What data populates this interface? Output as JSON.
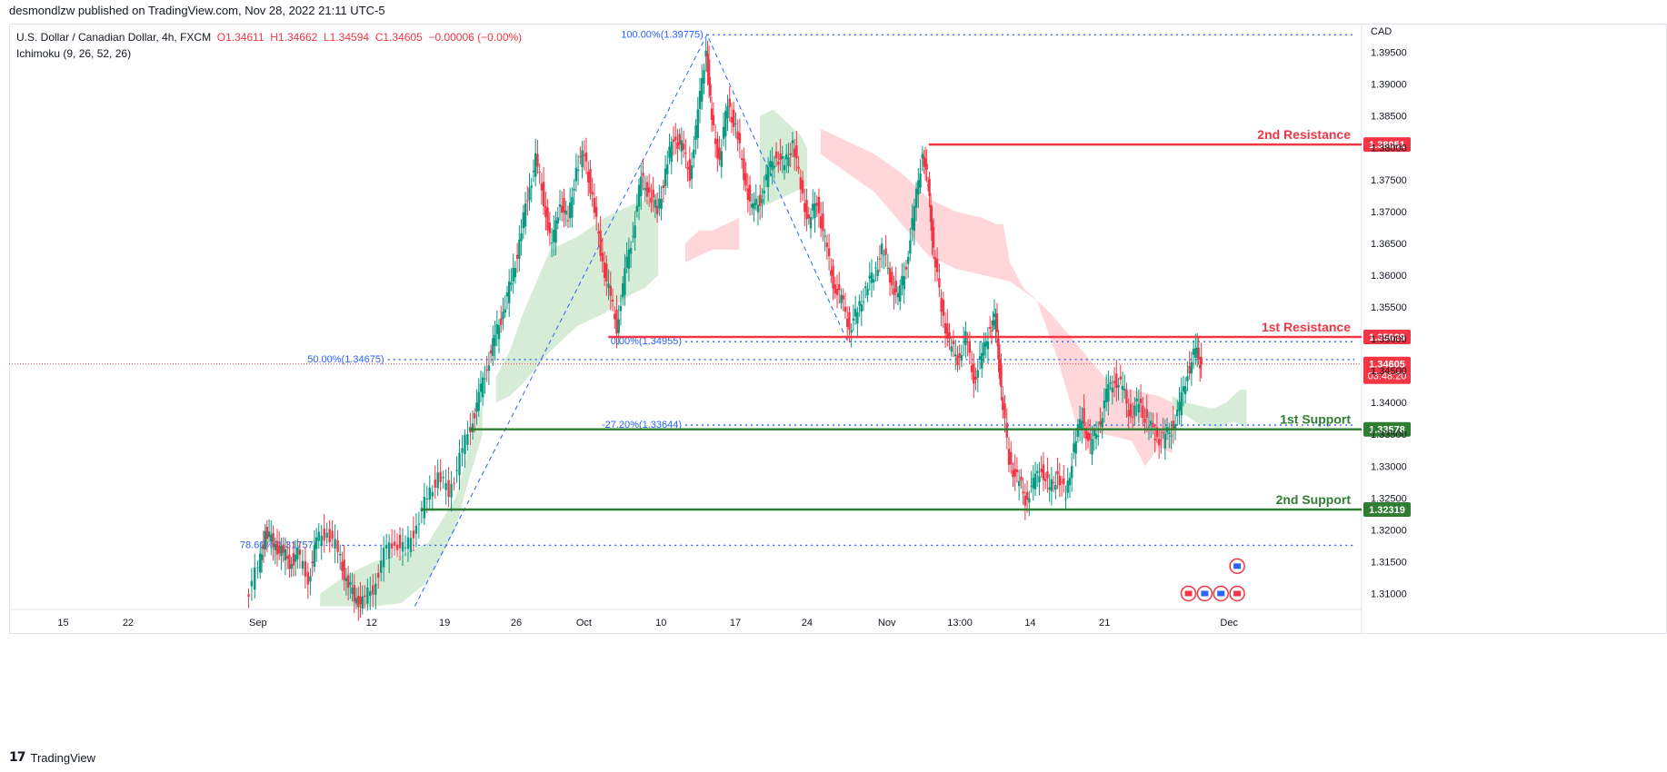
{
  "header": {
    "publisher_line": "desmondlzw published on TradingView.com, Nov 28, 2022 21:11 UTC-5"
  },
  "legend": {
    "symbol": "U.S. Dollar / Canadian Dollar, 4h, FXCM",
    "open": "O1.34611",
    "high": "H1.34662",
    "low": "L1.34594",
    "close": "C1.34605",
    "change": "−0.00006 (−0.00%)",
    "indicator": "Ichimoku (9, 26, 52, 26)"
  },
  "footer": {
    "logo_glyph": "17",
    "brand": "TradingView"
  },
  "colors": {
    "bull": "#089981",
    "bear": "#f23645",
    "resistance": "#f23645",
    "support": "#2e7d32",
    "fib": "#2962ff",
    "cloud_bull": "#c8e6c9",
    "cloud_bear": "#ffcdd2",
    "axis_text": "#131722"
  },
  "chart_data": {
    "type": "candlestick",
    "currency": "CAD",
    "ylim": [
      1.3075,
      1.3995
    ],
    "y_ticks": [
      "1.39500",
      "1.39000",
      "1.38500",
      "1.38000",
      "1.37500",
      "1.37000",
      "1.36500",
      "1.36000",
      "1.35500",
      "1.35000",
      "1.34500",
      "1.34000",
      "1.33500",
      "1.33000",
      "1.32500",
      "1.32000",
      "1.31500",
      "1.31000"
    ],
    "x_ticks": [
      {
        "label": "15",
        "t": 0.04
      },
      {
        "label": "22",
        "t": 0.088
      },
      {
        "label": "Sep",
        "t": 0.184
      },
      {
        "label": "12",
        "t": 0.268
      },
      {
        "label": "19",
        "t": 0.322
      },
      {
        "label": "26",
        "t": 0.375
      },
      {
        "label": "Oct",
        "t": 0.425
      },
      {
        "label": "10",
        "t": 0.482
      },
      {
        "label": "17",
        "t": 0.537
      },
      {
        "label": "24",
        "t": 0.59
      },
      {
        "label": "Nov",
        "t": 0.649
      },
      {
        "label": "13:00",
        "t": 0.703
      },
      {
        "label": "14",
        "t": 0.755
      },
      {
        "label": "21",
        "t": 0.81
      },
      {
        "label": "Dec",
        "t": 0.902
      }
    ],
    "price_path": [
      [
        0.176,
        1.3095
      ],
      [
        0.185,
        1.314
      ],
      [
        0.19,
        1.3195
      ],
      [
        0.196,
        1.318
      ],
      [
        0.202,
        1.3165
      ],
      [
        0.208,
        1.315
      ],
      [
        0.214,
        1.316
      ],
      [
        0.222,
        1.3125
      ],
      [
        0.228,
        1.318
      ],
      [
        0.236,
        1.32
      ],
      [
        0.244,
        1.3165
      ],
      [
        0.25,
        1.312
      ],
      [
        0.256,
        1.3095
      ],
      [
        0.262,
        1.3085
      ],
      [
        0.27,
        1.311
      ],
      [
        0.278,
        1.316
      ],
      [
        0.286,
        1.3185
      ],
      [
        0.294,
        1.3165
      ],
      [
        0.302,
        1.321
      ],
      [
        0.31,
        1.325
      ],
      [
        0.318,
        1.3285
      ],
      [
        0.326,
        1.326
      ],
      [
        0.334,
        1.331
      ],
      [
        0.342,
        1.3365
      ],
      [
        0.348,
        1.3405
      ],
      [
        0.354,
        1.346
      ],
      [
        0.36,
        1.35
      ],
      [
        0.366,
        1.3545
      ],
      [
        0.372,
        1.359
      ],
      [
        0.378,
        1.365
      ],
      [
        0.384,
        1.3725
      ],
      [
        0.39,
        1.378
      ],
      [
        0.396,
        1.372
      ],
      [
        0.402,
        1.364
      ],
      [
        0.408,
        1.372
      ],
      [
        0.414,
        1.368
      ],
      [
        0.42,
        1.377
      ],
      [
        0.426,
        1.379
      ],
      [
        0.432,
        1.372
      ],
      [
        0.438,
        1.364
      ],
      [
        0.444,
        1.3575
      ],
      [
        0.45,
        1.352
      ],
      [
        0.456,
        1.36
      ],
      [
        0.462,
        1.367
      ],
      [
        0.468,
        1.375
      ],
      [
        0.474,
        1.373
      ],
      [
        0.48,
        1.37
      ],
      [
        0.486,
        1.376
      ],
      [
        0.492,
        1.382
      ],
      [
        0.498,
        1.38
      ],
      [
        0.504,
        1.376
      ],
      [
        0.51,
        1.385
      ],
      [
        0.516,
        1.396
      ],
      [
        0.52,
        1.384
      ],
      [
        0.526,
        1.378
      ],
      [
        0.532,
        1.387
      ],
      [
        0.538,
        1.383
      ],
      [
        0.544,
        1.376
      ],
      [
        0.55,
        1.37
      ],
      [
        0.556,
        1.372
      ],
      [
        0.562,
        1.376
      ],
      [
        0.568,
        1.379
      ],
      [
        0.574,
        1.377
      ],
      [
        0.58,
        1.381
      ],
      [
        0.586,
        1.374
      ],
      [
        0.592,
        1.368
      ],
      [
        0.598,
        1.372
      ],
      [
        0.604,
        1.365
      ],
      [
        0.61,
        1.359
      ],
      [
        0.616,
        1.356
      ],
      [
        0.622,
        1.352
      ],
      [
        0.628,
        1.354
      ],
      [
        0.634,
        1.358
      ],
      [
        0.64,
        1.36
      ],
      [
        0.646,
        1.364
      ],
      [
        0.652,
        1.36
      ],
      [
        0.658,
        1.356
      ],
      [
        0.664,
        1.362
      ],
      [
        0.67,
        1.37
      ],
      [
        0.676,
        1.3795
      ],
      [
        0.68,
        1.374
      ],
      [
        0.684,
        1.364
      ],
      [
        0.69,
        1.355
      ],
      [
        0.696,
        1.349
      ],
      [
        0.702,
        1.347
      ],
      [
        0.708,
        1.35
      ],
      [
        0.714,
        1.344
      ],
      [
        0.72,
        1.347
      ],
      [
        0.726,
        1.352
      ],
      [
        0.73,
        1.353
      ],
      [
        0.734,
        1.342
      ],
      [
        0.74,
        1.331
      ],
      [
        0.746,
        1.328
      ],
      [
        0.752,
        1.325
      ],
      [
        0.758,
        1.327
      ],
      [
        0.764,
        1.33
      ],
      [
        0.77,
        1.326
      ],
      [
        0.776,
        1.329
      ],
      [
        0.782,
        1.325
      ],
      [
        0.788,
        1.333
      ],
      [
        0.794,
        1.338
      ],
      [
        0.8,
        1.333
      ],
      [
        0.806,
        1.336
      ],
      [
        0.812,
        1.341
      ],
      [
        0.818,
        1.344
      ],
      [
        0.824,
        1.342
      ],
      [
        0.83,
        1.338
      ],
      [
        0.836,
        1.34
      ],
      [
        0.842,
        1.337
      ],
      [
        0.848,
        1.335
      ],
      [
        0.854,
        1.334
      ],
      [
        0.86,
        1.336
      ],
      [
        0.866,
        1.339
      ],
      [
        0.872,
        1.345
      ],
      [
        0.878,
        1.348
      ],
      [
        0.882,
        1.34605
      ]
    ],
    "cloud_bull": [
      [
        [
          0.36,
          1.344
        ],
        [
          0.37,
          1.348
        ],
        [
          0.38,
          1.354
        ],
        [
          0.39,
          1.359
        ],
        [
          0.4,
          1.364
        ],
        [
          0.42,
          1.366
        ],
        [
          0.44,
          1.369
        ],
        [
          0.46,
          1.371
        ],
        [
          0.475,
          1.372
        ],
        [
          0.48,
          1.373
        ],
        [
          0.48,
          1.36
        ],
        [
          0.47,
          1.358
        ],
        [
          0.46,
          1.357
        ],
        [
          0.44,
          1.354
        ],
        [
          0.42,
          1.352
        ],
        [
          0.4,
          1.348
        ],
        [
          0.38,
          1.343
        ],
        [
          0.37,
          1.341
        ],
        [
          0.36,
          1.34
        ]
      ],
      [
        [
          0.23,
          1.31
        ],
        [
          0.25,
          1.313
        ],
        [
          0.27,
          1.315
        ],
        [
          0.29,
          1.316
        ],
        [
          0.31,
          1.318
        ],
        [
          0.33,
          1.325
        ],
        [
          0.34,
          1.333
        ],
        [
          0.35,
          1.34
        ],
        [
          0.35,
          1.335
        ],
        [
          0.34,
          1.328
        ],
        [
          0.33,
          1.32
        ],
        [
          0.31,
          1.312
        ],
        [
          0.29,
          1.3085
        ],
        [
          0.27,
          1.308
        ],
        [
          0.25,
          1.308
        ],
        [
          0.23,
          1.308
        ]
      ],
      [
        [
          0.555,
          1.385
        ],
        [
          0.565,
          1.386
        ],
        [
          0.575,
          1.384
        ],
        [
          0.585,
          1.382
        ],
        [
          0.59,
          1.38
        ],
        [
          0.59,
          1.374
        ],
        [
          0.58,
          1.373
        ],
        [
          0.57,
          1.372
        ],
        [
          0.56,
          1.371
        ],
        [
          0.555,
          1.372
        ]
      ],
      [
        [
          0.86,
          1.341
        ],
        [
          0.87,
          1.34
        ],
        [
          0.88,
          1.3395
        ],
        [
          0.89,
          1.339
        ],
        [
          0.9,
          1.34
        ],
        [
          0.91,
          1.342
        ],
        [
          0.915,
          1.342
        ],
        [
          0.915,
          1.336
        ],
        [
          0.905,
          1.337
        ],
        [
          0.895,
          1.336
        ],
        [
          0.88,
          1.3365
        ],
        [
          0.87,
          1.338
        ],
        [
          0.86,
          1.339
        ]
      ]
    ],
    "cloud_bear": [
      [
        [
          0.5,
          1.365
        ],
        [
          0.51,
          1.367
        ],
        [
          0.52,
          1.367
        ],
        [
          0.53,
          1.368
        ],
        [
          0.54,
          1.369
        ],
        [
          0.54,
          1.364
        ],
        [
          0.53,
          1.364
        ],
        [
          0.52,
          1.364
        ],
        [
          0.51,
          1.363
        ],
        [
          0.5,
          1.362
        ]
      ],
      [
        [
          0.6,
          1.383
        ],
        [
          0.62,
          1.381
        ],
        [
          0.64,
          1.379
        ],
        [
          0.66,
          1.376
        ],
        [
          0.68,
          1.372
        ],
        [
          0.7,
          1.37
        ],
        [
          0.72,
          1.369
        ],
        [
          0.73,
          1.368
        ],
        [
          0.735,
          1.368
        ],
        [
          0.74,
          1.362
        ],
        [
          0.75,
          1.358
        ],
        [
          0.77,
          1.354
        ],
        [
          0.79,
          1.349
        ],
        [
          0.81,
          1.344
        ],
        [
          0.83,
          1.342
        ],
        [
          0.85,
          1.341
        ],
        [
          0.86,
          1.34
        ],
        [
          0.86,
          1.332
        ],
        [
          0.85,
          1.333
        ],
        [
          0.84,
          1.33
        ],
        [
          0.83,
          1.334
        ],
        [
          0.81,
          1.335
        ],
        [
          0.79,
          1.336
        ],
        [
          0.775,
          1.347
        ],
        [
          0.76,
          1.356
        ],
        [
          0.74,
          1.359
        ],
        [
          0.72,
          1.36
        ],
        [
          0.7,
          1.361
        ],
        [
          0.68,
          1.363
        ],
        [
          0.66,
          1.368
        ],
        [
          0.64,
          1.373
        ],
        [
          0.62,
          1.376
        ],
        [
          0.6,
          1.379
        ]
      ]
    ],
    "levels": [
      {
        "label": "2nd Resistance",
        "price": 1.38051,
        "price_label": "1.38051",
        "color": "#f23645",
        "x_start": 0.68
      },
      {
        "label": "1st Resistance",
        "price": 1.35029,
        "price_label": "1.35029",
        "color": "#f23645",
        "x_start": 0.443
      },
      {
        "label": "1st Support",
        "price": 1.33578,
        "price_label": "1.33578",
        "color": "#2e7d32",
        "x_start": 0.34
      },
      {
        "label": "2nd Support",
        "price": 1.32319,
        "price_label": "1.32319",
        "color": "#2e7d32",
        "x_start": 0.305
      }
    ],
    "fib_levels": [
      {
        "label": "100.00%(1.39775)",
        "price": 1.39775,
        "x_start": 0.516
      },
      {
        "label": "50.00%(1.34675)",
        "price": 1.34675,
        "x_start": 0.28
      },
      {
        "label": "0.00%(1.34955)",
        "price": 1.34955,
        "x_start": 0.5
      },
      {
        "label": "-27.20%(1.33644)",
        "price": 1.33644,
        "x_start": 0.5
      },
      {
        "label": "78.60%(1.31757)",
        "price": 1.31757,
        "x_start": 0.23
      }
    ],
    "fib_diagonal": [
      [
        0.3,
        1.308
      ],
      [
        0.516,
        1.39775
      ],
      [
        0.62,
        1.34955
      ]
    ],
    "current_price": {
      "price": 1.34605,
      "label": "1.34605",
      "countdown": "03:48:20",
      "color": "#f23645"
    },
    "event_markers": [
      {
        "t": 0.872,
        "price": 1.31,
        "icon": "ca-flag-icon"
      },
      {
        "t": 0.884,
        "price": 1.31,
        "icon": "us-flag-icon"
      },
      {
        "t": 0.896,
        "price": 1.31,
        "icon": "us-flag-icon"
      },
      {
        "t": 0.908,
        "price": 1.31,
        "icon": "ca-flag-icon"
      },
      {
        "t": 0.908,
        "price": 1.3143,
        "icon": "us-flag-icon"
      }
    ]
  }
}
